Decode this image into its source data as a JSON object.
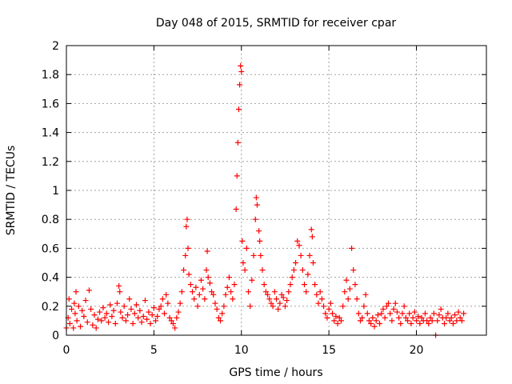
{
  "chart_data": {
    "type": "scatter",
    "title": "Day 048 of 2015, SRMTID for receiver cpar",
    "xlabel": "GPS time / hours",
    "ylabel": "SRMTID / TECUs",
    "xlim": [
      0,
      24
    ],
    "ylim": [
      0,
      2
    ],
    "xticks": [
      0,
      5,
      10,
      15,
      20
    ],
    "xtick_labels": [
      "0",
      "5",
      "10",
      "15",
      "20"
    ],
    "yticks": [
      0,
      0.2,
      0.4,
      0.6,
      0.8,
      1,
      1.2,
      1.4,
      1.6,
      1.8,
      2
    ],
    "ytick_labels": [
      "0",
      "0.2",
      "0.4",
      "0.6",
      "0.8",
      "1",
      "1.2",
      "1.4",
      "1.6",
      "1.8",
      "2"
    ],
    "grid": true,
    "marker": "plus",
    "color": "#ff0000",
    "series": [
      {
        "name": "SRMTID",
        "points": [
          [
            0.0,
            0.05
          ],
          [
            0.1,
            0.12
          ],
          [
            0.15,
            0.25
          ],
          [
            0.2,
            0.08
          ],
          [
            0.3,
            0.18
          ],
          [
            0.4,
            0.05
          ],
          [
            0.45,
            0.22
          ],
          [
            0.5,
            0.15
          ],
          [
            0.55,
            0.3
          ],
          [
            0.6,
            0.1
          ],
          [
            0.7,
            0.2
          ],
          [
            0.8,
            0.06
          ],
          [
            0.9,
            0.17
          ],
          [
            1.0,
            0.13
          ],
          [
            1.1,
            0.24
          ],
          [
            1.2,
            0.09
          ],
          [
            1.3,
            0.31
          ],
          [
            1.4,
            0.18
          ],
          [
            1.5,
            0.07
          ],
          [
            1.6,
            0.14
          ],
          [
            1.7,
            0.05
          ],
          [
            1.8,
            0.11
          ],
          [
            1.9,
            0.16
          ],
          [
            2.0,
            0.1
          ],
          [
            2.1,
            0.19
          ],
          [
            2.2,
            0.12
          ],
          [
            2.3,
            0.15
          ],
          [
            2.4,
            0.09
          ],
          [
            2.5,
            0.21
          ],
          [
            2.6,
            0.13
          ],
          [
            2.7,
            0.17
          ],
          [
            2.8,
            0.08
          ],
          [
            2.9,
            0.22
          ],
          [
            3.0,
            0.34
          ],
          [
            3.05,
            0.3
          ],
          [
            3.1,
            0.16
          ],
          [
            3.2,
            0.12
          ],
          [
            3.3,
            0.2
          ],
          [
            3.4,
            0.1
          ],
          [
            3.5,
            0.14
          ],
          [
            3.6,
            0.25
          ],
          [
            3.7,
            0.18
          ],
          [
            3.8,
            0.08
          ],
          [
            3.9,
            0.15
          ],
          [
            4.0,
            0.21
          ],
          [
            4.1,
            0.12
          ],
          [
            4.2,
            0.17
          ],
          [
            4.3,
            0.09
          ],
          [
            4.4,
            0.13
          ],
          [
            4.5,
            0.24
          ],
          [
            4.6,
            0.11
          ],
          [
            4.7,
            0.16
          ],
          [
            4.8,
            0.08
          ],
          [
            4.9,
            0.14
          ],
          [
            5.0,
            0.19
          ],
          [
            5.1,
            0.1
          ],
          [
            5.2,
            0.13
          ],
          [
            5.3,
            0.18
          ],
          [
            5.4,
            0.2
          ],
          [
            5.5,
            0.25
          ],
          [
            5.6,
            0.15
          ],
          [
            5.7,
            0.28
          ],
          [
            5.8,
            0.22
          ],
          [
            5.9,
            0.12
          ],
          [
            6.0,
            0.1
          ],
          [
            6.1,
            0.08
          ],
          [
            6.2,
            0.05
          ],
          [
            6.3,
            0.12
          ],
          [
            6.4,
            0.16
          ],
          [
            6.5,
            0.22
          ],
          [
            6.6,
            0.3
          ],
          [
            6.7,
            0.45
          ],
          [
            6.8,
            0.55
          ],
          [
            6.85,
            0.75
          ],
          [
            6.9,
            0.8
          ],
          [
            6.95,
            0.6
          ],
          [
            7.0,
            0.42
          ],
          [
            7.1,
            0.35
          ],
          [
            7.2,
            0.3
          ],
          [
            7.3,
            0.25
          ],
          [
            7.4,
            0.33
          ],
          [
            7.5,
            0.2
          ],
          [
            7.6,
            0.28
          ],
          [
            7.7,
            0.38
          ],
          [
            7.8,
            0.32
          ],
          [
            7.9,
            0.25
          ],
          [
            8.0,
            0.45
          ],
          [
            8.05,
            0.58
          ],
          [
            8.1,
            0.4
          ],
          [
            8.2,
            0.36
          ],
          [
            8.3,
            0.3
          ],
          [
            8.4,
            0.28
          ],
          [
            8.5,
            0.22
          ],
          [
            8.6,
            0.18
          ],
          [
            8.7,
            0.12
          ],
          [
            8.8,
            0.1
          ],
          [
            8.9,
            0.15
          ],
          [
            9.0,
            0.2
          ],
          [
            9.1,
            0.28
          ],
          [
            9.2,
            0.33
          ],
          [
            9.3,
            0.4
          ],
          [
            9.4,
            0.3
          ],
          [
            9.5,
            0.25
          ],
          [
            9.6,
            0.35
          ],
          [
            9.7,
            0.87
          ],
          [
            9.75,
            1.1
          ],
          [
            9.8,
            1.33
          ],
          [
            9.85,
            1.56
          ],
          [
            9.9,
            1.73
          ],
          [
            9.95,
            1.86
          ],
          [
            10.0,
            1.82
          ],
          [
            10.05,
            0.65
          ],
          [
            10.1,
            0.5
          ],
          [
            10.2,
            0.45
          ],
          [
            10.3,
            0.6
          ],
          [
            10.4,
            0.3
          ],
          [
            10.5,
            0.2
          ],
          [
            10.6,
            0.38
          ],
          [
            10.7,
            0.55
          ],
          [
            10.8,
            0.8
          ],
          [
            10.85,
            0.95
          ],
          [
            10.9,
            0.9
          ],
          [
            11.0,
            0.72
          ],
          [
            11.05,
            0.65
          ],
          [
            11.1,
            0.55
          ],
          [
            11.2,
            0.45
          ],
          [
            11.3,
            0.35
          ],
          [
            11.4,
            0.3
          ],
          [
            11.5,
            0.28
          ],
          [
            11.6,
            0.25
          ],
          [
            11.7,
            0.22
          ],
          [
            11.8,
            0.2
          ],
          [
            11.9,
            0.3
          ],
          [
            12.0,
            0.25
          ],
          [
            12.1,
            0.18
          ],
          [
            12.2,
            0.22
          ],
          [
            12.3,
            0.28
          ],
          [
            12.4,
            0.26
          ],
          [
            12.5,
            0.2
          ],
          [
            12.6,
            0.24
          ],
          [
            12.7,
            0.3
          ],
          [
            12.8,
            0.35
          ],
          [
            12.9,
            0.4
          ],
          [
            13.0,
            0.45
          ],
          [
            13.1,
            0.5
          ],
          [
            13.2,
            0.65
          ],
          [
            13.3,
            0.62
          ],
          [
            13.4,
            0.55
          ],
          [
            13.5,
            0.45
          ],
          [
            13.6,
            0.35
          ],
          [
            13.7,
            0.3
          ],
          [
            13.8,
            0.42
          ],
          [
            13.9,
            0.55
          ],
          [
            14.0,
            0.73
          ],
          [
            14.05,
            0.68
          ],
          [
            14.1,
            0.5
          ],
          [
            14.2,
            0.35
          ],
          [
            14.3,
            0.28
          ],
          [
            14.4,
            0.22
          ],
          [
            14.5,
            0.3
          ],
          [
            14.6,
            0.25
          ],
          [
            14.7,
            0.2
          ],
          [
            14.8,
            0.15
          ],
          [
            14.9,
            0.12
          ],
          [
            15.0,
            0.18
          ],
          [
            15.1,
            0.22
          ],
          [
            15.2,
            0.15
          ],
          [
            15.3,
            0.1
          ],
          [
            15.4,
            0.13
          ],
          [
            15.5,
            0.08
          ],
          [
            15.6,
            0.12
          ],
          [
            15.7,
            0.1
          ],
          [
            15.8,
            0.2
          ],
          [
            15.9,
            0.3
          ],
          [
            16.0,
            0.38
          ],
          [
            16.1,
            0.25
          ],
          [
            16.2,
            0.32
          ],
          [
            16.3,
            0.6
          ],
          [
            16.4,
            0.45
          ],
          [
            16.5,
            0.35
          ],
          [
            16.6,
            0.25
          ],
          [
            16.7,
            0.15
          ],
          [
            16.8,
            0.1
          ],
          [
            16.9,
            0.12
          ],
          [
            17.0,
            0.2
          ],
          [
            17.1,
            0.28
          ],
          [
            17.2,
            0.15
          ],
          [
            17.3,
            0.1
          ],
          [
            17.4,
            0.08
          ],
          [
            17.5,
            0.12
          ],
          [
            17.6,
            0.06
          ],
          [
            17.7,
            0.1
          ],
          [
            17.8,
            0.14
          ],
          [
            17.9,
            0.08
          ],
          [
            18.0,
            0.15
          ],
          [
            18.1,
            0.18
          ],
          [
            18.2,
            0.12
          ],
          [
            18.3,
            0.2
          ],
          [
            18.4,
            0.22
          ],
          [
            18.5,
            0.15
          ],
          [
            18.6,
            0.1
          ],
          [
            18.7,
            0.18
          ],
          [
            18.8,
            0.22
          ],
          [
            18.9,
            0.16
          ],
          [
            19.0,
            0.12
          ],
          [
            19.1,
            0.08
          ],
          [
            19.2,
            0.15
          ],
          [
            19.3,
            0.2
          ],
          [
            19.4,
            0.12
          ],
          [
            19.5,
            0.1
          ],
          [
            19.6,
            0.15
          ],
          [
            19.7,
            0.08
          ],
          [
            19.8,
            0.12
          ],
          [
            19.9,
            0.16
          ],
          [
            20.0,
            0.1
          ],
          [
            20.1,
            0.13
          ],
          [
            20.2,
            0.08
          ],
          [
            20.3,
            0.12
          ],
          [
            20.4,
            0.1
          ],
          [
            20.5,
            0.15
          ],
          [
            20.6,
            0.1
          ],
          [
            20.7,
            0.08
          ],
          [
            20.8,
            0.12
          ],
          [
            20.9,
            0.1
          ],
          [
            21.0,
            0.15
          ],
          [
            21.1,
            0.0
          ],
          [
            21.2,
            0.1
          ],
          [
            21.3,
            0.14
          ],
          [
            21.4,
            0.18
          ],
          [
            21.5,
            0.12
          ],
          [
            21.6,
            0.08
          ],
          [
            21.7,
            0.12
          ],
          [
            21.8,
            0.15
          ],
          [
            21.9,
            0.1
          ],
          [
            22.0,
            0.12
          ],
          [
            22.1,
            0.08
          ],
          [
            22.2,
            0.14
          ],
          [
            22.3,
            0.1
          ],
          [
            22.4,
            0.16
          ],
          [
            22.5,
            0.12
          ],
          [
            22.6,
            0.1
          ],
          [
            22.7,
            0.15
          ]
        ]
      }
    ]
  }
}
